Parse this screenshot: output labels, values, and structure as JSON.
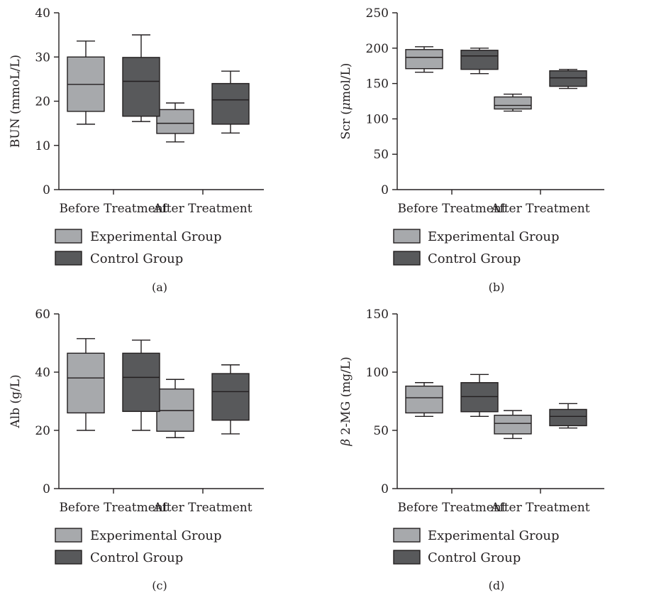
{
  "legend": {
    "experimental_label": "Experimental Group",
    "control_label": "Control Group"
  },
  "colors": {
    "experimental": "#a7a9ac",
    "control": "#58595b",
    "axis": "#231f20"
  },
  "chart_data": [
    {
      "panel_label": "(a)",
      "type": "box",
      "ylabel_pre": "BUN (mmoL/L)",
      "ylabel_symbol": "",
      "ylabel_post": "",
      "ylim": [
        0,
        40
      ],
      "yticks": [
        "0",
        "10",
        "20",
        "30",
        "40"
      ],
      "categories": [
        "Before Treatment",
        "After Treatment"
      ],
      "series": [
        {
          "name": "Experimental Group",
          "boxes": [
            {
              "min": 14.8,
              "q1": 17.7,
              "median": 23.8,
              "q3": 30.0,
              "max": 33.6
            },
            {
              "min": 10.8,
              "q1": 12.7,
              "median": 15.0,
              "q3": 18.1,
              "max": 19.6
            }
          ]
        },
        {
          "name": "Control Group",
          "boxes": [
            {
              "min": 15.4,
              "q1": 16.6,
              "median": 24.5,
              "q3": 29.9,
              "max": 35.0
            },
            {
              "min": 12.8,
              "q1": 14.8,
              "median": 20.3,
              "q3": 24.0,
              "max": 26.8
            }
          ]
        }
      ]
    },
    {
      "panel_label": "(b)",
      "type": "box",
      "ylabel_pre": "Scr (",
      "ylabel_symbol": "μ",
      "ylabel_post": "mol/L)",
      "ylim": [
        0,
        250
      ],
      "yticks": [
        "0",
        "50",
        "100",
        "150",
        "200",
        "250"
      ],
      "categories": [
        "Before Treatment",
        "After Treatment"
      ],
      "series": [
        {
          "name": "Experimental Group",
          "boxes": [
            {
              "min": 166,
              "q1": 171,
              "median": 187,
              "q3": 198,
              "max": 202
            },
            {
              "min": 111,
              "q1": 114,
              "median": 119,
              "q3": 131,
              "max": 135
            }
          ]
        },
        {
          "name": "Control Group",
          "boxes": [
            {
              "min": 164,
              "q1": 170,
              "median": 189,
              "q3": 197,
              "max": 200
            },
            {
              "min": 143,
              "q1": 146,
              "median": 158,
              "q3": 168,
              "max": 170
            }
          ]
        }
      ]
    },
    {
      "panel_label": "(c)",
      "type": "box",
      "ylabel_pre": "Alb (g/L)",
      "ylabel_symbol": "",
      "ylabel_post": "",
      "ylim": [
        0,
        60
      ],
      "yticks": [
        "0",
        "20",
        "40",
        "60"
      ],
      "categories": [
        "Before Treatment",
        "After Treatment"
      ],
      "series": [
        {
          "name": "Experimental Group",
          "boxes": [
            {
              "min": 20.0,
              "q1": 26.0,
              "median": 38.0,
              "q3": 46.5,
              "max": 51.5
            },
            {
              "min": 17.5,
              "q1": 19.7,
              "median": 26.8,
              "q3": 34.2,
              "max": 37.5
            }
          ]
        },
        {
          "name": "Control Group",
          "boxes": [
            {
              "min": 20.0,
              "q1": 26.5,
              "median": 38.2,
              "q3": 46.5,
              "max": 51.0
            },
            {
              "min": 18.8,
              "q1": 23.5,
              "median": 33.3,
              "q3": 39.5,
              "max": 42.5
            }
          ]
        }
      ]
    },
    {
      "panel_label": "(d)",
      "type": "box",
      "ylabel_pre": "",
      "ylabel_symbol": "β",
      "ylabel_post": " 2-MG (mg/L)",
      "ylim": [
        0,
        150
      ],
      "yticks": [
        "0",
        "50",
        "100",
        "150"
      ],
      "categories": [
        "Before Treatment",
        "After Treatment"
      ],
      "series": [
        {
          "name": "Experimental Group",
          "boxes": [
            {
              "min": 62,
              "q1": 65,
              "median": 78,
              "q3": 88,
              "max": 91
            },
            {
              "min": 43,
              "q1": 47,
              "median": 56,
              "q3": 63,
              "max": 67
            }
          ]
        },
        {
          "name": "Control Group",
          "boxes": [
            {
              "min": 62,
              "q1": 66,
              "median": 79,
              "q3": 91,
              "max": 98
            },
            {
              "min": 52,
              "q1": 54,
              "median": 62,
              "q3": 68,
              "max": 73
            }
          ]
        }
      ]
    }
  ]
}
